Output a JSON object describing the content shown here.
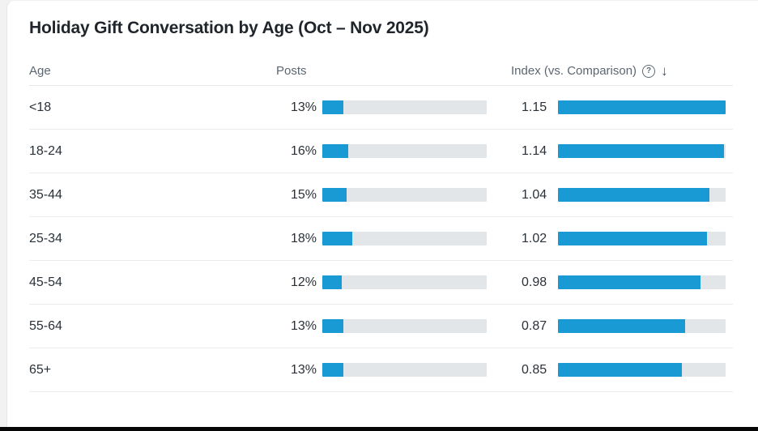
{
  "title": "Holiday Gift Conversation by Age (Oct – Nov 2025)",
  "columns": {
    "age": "Age",
    "posts": "Posts",
    "index": "Index (vs. Comparison)"
  },
  "icons": {
    "help": "?",
    "sort_desc": "↓"
  },
  "scales": {
    "posts_max": 100,
    "index_max": 1.15
  },
  "colors": {
    "bar_fill": "#1a9ad5",
    "bar_track": "#e3e6e8"
  },
  "rows": [
    {
      "age": "<18",
      "posts": "13%",
      "posts_pct": 13,
      "index": "1.15",
      "index_val": 1.15
    },
    {
      "age": "18-24",
      "posts": "16%",
      "posts_pct": 16,
      "index": "1.14",
      "index_val": 1.14
    },
    {
      "age": "35-44",
      "posts": "15%",
      "posts_pct": 15,
      "index": "1.04",
      "index_val": 1.04
    },
    {
      "age": "25-34",
      "posts": "18%",
      "posts_pct": 18,
      "index": "1.02",
      "index_val": 1.02
    },
    {
      "age": "45-54",
      "posts": "12%",
      "posts_pct": 12,
      "index": "0.98",
      "index_val": 0.98
    },
    {
      "age": "55-64",
      "posts": "13%",
      "posts_pct": 13,
      "index": "0.87",
      "index_val": 0.87
    },
    {
      "age": "65+",
      "posts": "13%",
      "posts_pct": 13,
      "index": "0.85",
      "index_val": 0.85
    }
  ],
  "chart_data": {
    "type": "bar",
    "title": "Holiday Gift Conversation by Age (Oct – Nov 2025)",
    "categories": [
      "<18",
      "18-24",
      "35-44",
      "25-34",
      "45-54",
      "55-64",
      "65+"
    ],
    "series": [
      {
        "name": "Posts",
        "unit": "%",
        "values": [
          13,
          16,
          15,
          18,
          12,
          13,
          13
        ],
        "axis_range": [
          0,
          100
        ]
      },
      {
        "name": "Index (vs. Comparison)",
        "values": [
          1.15,
          1.14,
          1.04,
          1.02,
          0.98,
          0.87,
          0.85
        ],
        "axis_range": [
          0,
          1.15
        ]
      }
    ],
    "orientation": "horizontal",
    "sorted_by": "Index descending",
    "grid": false,
    "legend_position": "none"
  }
}
